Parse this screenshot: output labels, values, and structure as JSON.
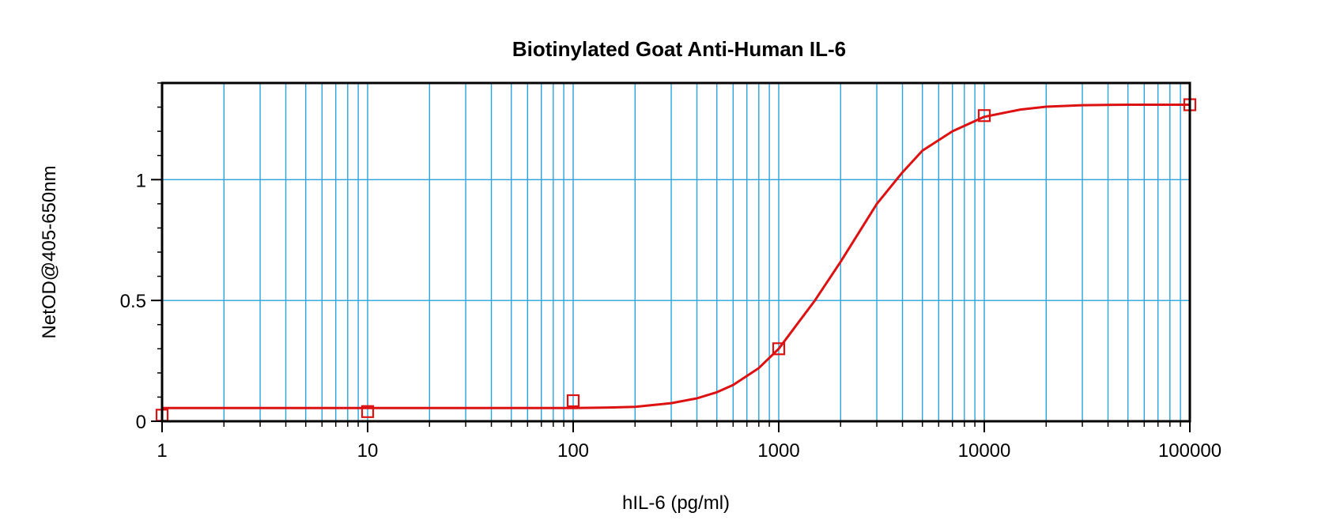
{
  "chart_data": {
    "type": "scatter",
    "title": "Biotinylated Goat Anti-Human IL-6",
    "xlabel": "hIL-6 (pg/ml)",
    "ylabel": "NetOD@405-650nm",
    "x_scale": "log",
    "xlim": [
      1,
      100000
    ],
    "ylim": [
      0,
      1.4
    ],
    "x_ticks": [
      1,
      10,
      100,
      1000,
      10000,
      100000
    ],
    "x_tick_labels": [
      "1",
      "10",
      "100",
      "1000",
      "10000",
      "100000"
    ],
    "y_ticks": [
      0,
      0.5,
      1
    ],
    "y_tick_labels": [
      "0",
      "0.5",
      "1"
    ],
    "grid": true,
    "series": [
      {
        "type": "scatter",
        "marker": "square",
        "x": [
          1,
          10,
          100,
          1000,
          10000,
          100000
        ],
        "y": [
          0.025,
          0.04,
          0.085,
          0.3,
          1.265,
          1.31
        ]
      },
      {
        "type": "line",
        "x": [
          1,
          10,
          100,
          150,
          200,
          300,
          400,
          500,
          600,
          800,
          1000,
          1500,
          2000,
          3000,
          4000,
          5000,
          7000,
          10000,
          15000,
          20000,
          30000,
          50000,
          100000
        ],
        "y": [
          0.055,
          0.055,
          0.055,
          0.057,
          0.06,
          0.075,
          0.095,
          0.12,
          0.15,
          0.22,
          0.3,
          0.5,
          0.66,
          0.9,
          1.03,
          1.12,
          1.2,
          1.26,
          1.29,
          1.302,
          1.308,
          1.31,
          1.31
        ]
      }
    ],
    "colors": {
      "grid": "#2aa3dc",
      "series": "#dd1111",
      "axis": "#000000"
    }
  }
}
